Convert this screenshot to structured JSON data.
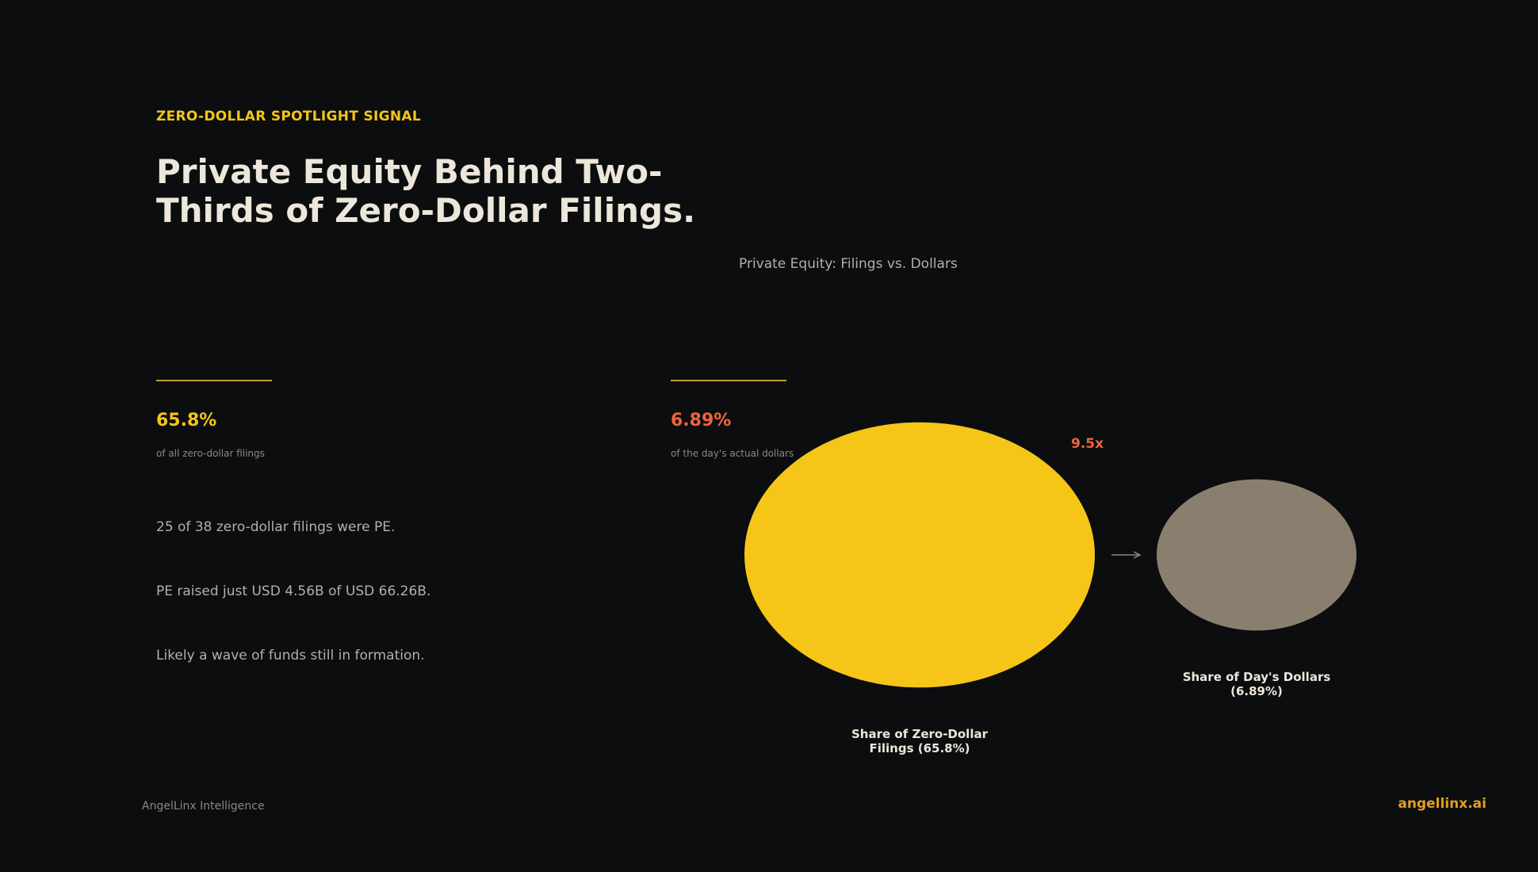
{
  "header": {
    "eyebrow": "ZERO-DOLLAR SPOTLIGHT SIGNAL",
    "title": "Private Equity Behind Two-Thirds of Zero-Dollar Filings."
  },
  "stats": [
    {
      "value": "65.8%",
      "caption": "of all zero-dollar filings"
    },
    {
      "value": "6.89%",
      "caption": "of the day's actual dollars"
    }
  ],
  "bullets": [
    "25 of 38 zero-dollar filings were PE.",
    "PE raised just USD 4.56B of USD 66.26B.",
    "Likely a wave of funds still in formation."
  ],
  "chart_data": {
    "type": "bubble",
    "title": "Private Equity: Filings vs. Dollars",
    "categories": [
      "Share of Zero-Dollar Filings (65.8%)",
      "Share of Day's Dollars (6.89%)"
    ],
    "values": [
      65.8,
      6.89
    ],
    "colors": [
      "#f5c518",
      "#8a7f6e"
    ],
    "annotation": "9.5x"
  },
  "footer": {
    "left": "AngelLinx Intelligence",
    "right": "angellinx.ai"
  }
}
